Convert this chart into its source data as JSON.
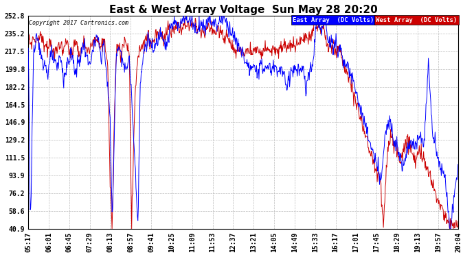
{
  "title": "East & West Array Voltage  Sun May 28 20:20",
  "copyright": "Copyright 2017 Cartronics.com",
  "legend_east": "East Array  (DC Volts)",
  "legend_west": "West Array  (DC Volts)",
  "east_color": "#0000ff",
  "west_color": "#cc0000",
  "yticks": [
    40.9,
    58.6,
    76.2,
    93.9,
    111.5,
    129.2,
    146.9,
    164.5,
    182.2,
    199.8,
    217.5,
    235.2,
    252.8
  ],
  "ymin": 40.9,
  "ymax": 252.8,
  "background_color": "#ffffff",
  "plot_bg_color": "#ffffff",
  "grid_color": "#bbbbbb",
  "title_fontsize": 11,
  "tick_fontsize": 7,
  "xtick_labels": [
    "05:17",
    "06:01",
    "06:45",
    "07:29",
    "08:13",
    "08:57",
    "09:41",
    "10:25",
    "11:09",
    "11:53",
    "12:37",
    "13:21",
    "14:05",
    "14:49",
    "15:33",
    "16:17",
    "17:01",
    "17:45",
    "18:29",
    "19:13",
    "19:57",
    "20:04"
  ],
  "num_points": 900
}
